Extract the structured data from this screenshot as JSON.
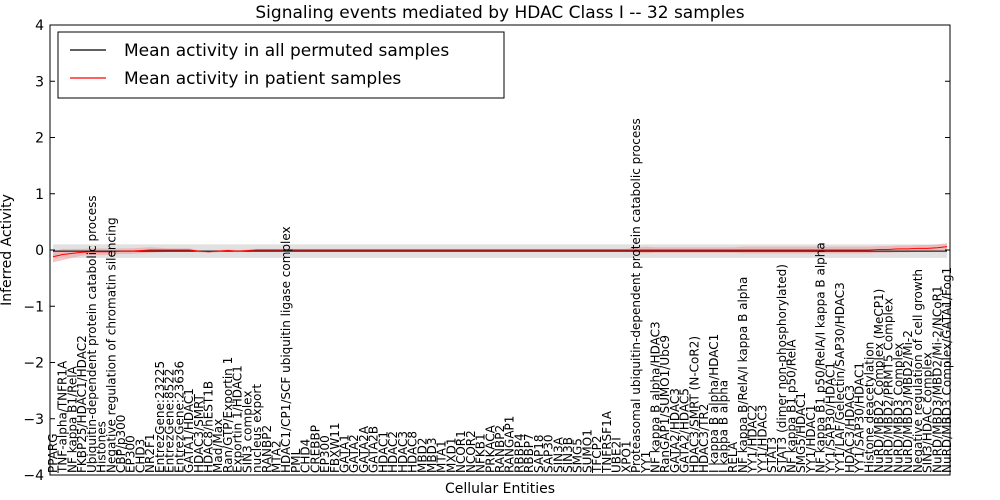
{
  "chart_data": {
    "type": "line",
    "title": "Signaling events mediated by HDAC Class I -- 32 samples",
    "xlabel": "Cellular Entities",
    "ylabel": "Inferred Activity",
    "ylim": [
      -4,
      4
    ],
    "yticks": [
      -4,
      -3,
      -2,
      -1,
      0,
      1,
      2,
      3,
      4
    ],
    "ytick_labels": [
      "−4",
      "−3",
      "−2",
      "−1",
      "0",
      "1",
      "2",
      "3",
      "4"
    ],
    "grid": false,
    "legend_position": "top-left",
    "categories": [
      "PPARG",
      "TNF-alpha/TNFR1A",
      "NF kappa B1/RelA",
      "FKBP25/HDAC1/HDAC2",
      "Ubiquitin-dependent protein catabolic process",
      "Histones",
      "Negative regulation of chromatin silencing",
      "CBP/p300",
      "EP300",
      "CHD3",
      "NR2F1",
      "EntrezGene:23225",
      "EntrezGene:8522",
      "EntrezGene:23636",
      "GATA1/HDAC1",
      "HDAC3/SMRT",
      "HDAC8/hEST1B",
      "Mad/Max",
      "Ran/GTP/Exportin 1",
      "Exportin 1/HDAC1",
      "SIN3 complex",
      "nucleus export",
      "RANBP2",
      "MTA2",
      "HDAC1/CP1/SCF ubiquitin ligase complex",
      "PML",
      "CHD4",
      "CREBBP",
      "EP300",
      "FBXW11",
      "GATA1",
      "GATA2",
      "GATA2A",
      "GATA2B",
      "HDAC1",
      "HDAC2",
      "HDAC3",
      "HDAC8",
      "MBD2",
      "MBD3",
      "MTA1",
      "MXD1",
      "NCOR1",
      "NCOR2",
      "NFKB1",
      "PRKACA",
      "RANBP2",
      "RANGAP1",
      "RBBP4",
      "RBBP7",
      "SAP18",
      "SAP30",
      "SIN3A",
      "SIN3B",
      "SMG5",
      "SUMO1",
      "TFCP2",
      "TNFRSF1A",
      "UBE2I",
      "XPO1",
      "Proteasomal ubiquitin-dependent protein catabolic process",
      "YY1",
      "NF kappa B alpha/HDAC3",
      "RanGAP1/SUMO1/Ubc9",
      "GATA2/HDAC3",
      "GATA2/HDAC5",
      "HDAC3/SMRT (N-CoR2)",
      "HDAC3/TR2",
      "I kappa B alpha/HDAC1",
      "I kappa B alpha",
      "RELA",
      "NF kappa B/RelA/I kappa B alpha",
      "YY1/HDAC2",
      "YY1/HDAC3",
      "STAT3",
      "STAT3 (dimer non-phosphorylated)",
      "NF kappa B1 p50/RelA",
      "SMG5/HDAC1",
      "YY1/HDAC1",
      "NF kappa B1 p50/RelA/I kappa B alpha",
      "YY1/SAP30/HDAC1",
      "YY1/LAF/Gelectin/SAP30/HDAC3",
      "HDAC3/HDAC3",
      "YY1/SAP30/HDAC1",
      "Histone deacetylation",
      "NuRD/MBD2 Complex (MeCP1)",
      "NuRD/MBD2/PRMT5 Complex",
      "NuRD/MBD3 Complex",
      "NuRD/MBD3/MBD2/Mi-2",
      "Negative regulation of cell growth",
      "SIN3/HDAC complex",
      "NuRD/MBD3/MBD2/Mi-2/NCoR1",
      "NuRD/MBD3 Complex/GATA1/Fog1"
    ],
    "series": [
      {
        "name": "Mean activity in all permuted samples",
        "color": "#000000",
        "values": [
          -0.02,
          -0.02,
          -0.02,
          -0.02,
          -0.02,
          -0.02,
          -0.02,
          -0.02,
          -0.02,
          -0.02,
          -0.02,
          -0.02,
          -0.02,
          -0.02,
          -0.02,
          -0.02,
          -0.02,
          -0.02,
          -0.02,
          -0.02,
          -0.02,
          -0.02,
          -0.02,
          -0.02,
          -0.02,
          -0.02,
          -0.02,
          -0.02,
          -0.02,
          -0.02,
          -0.02,
          -0.02,
          -0.02,
          -0.02,
          -0.02,
          -0.02,
          -0.02,
          -0.02,
          -0.02,
          -0.02,
          -0.02,
          -0.02,
          -0.02,
          -0.02,
          -0.02,
          -0.02,
          -0.02,
          -0.02,
          -0.02,
          -0.02,
          -0.02,
          -0.02,
          -0.02,
          -0.02,
          -0.02,
          -0.02,
          -0.02,
          -0.02,
          -0.02,
          -0.02,
          -0.02,
          -0.02,
          -0.02,
          -0.02,
          -0.02,
          -0.02,
          -0.02,
          -0.02,
          -0.02,
          -0.02,
          -0.02,
          -0.02,
          -0.02,
          -0.02,
          -0.02,
          -0.02,
          -0.02,
          -0.02,
          -0.02,
          -0.02,
          -0.02,
          -0.02,
          -0.02,
          -0.02,
          -0.02,
          -0.02,
          -0.02,
          -0.02,
          -0.02,
          -0.02,
          -0.02,
          -0.02,
          -0.02
        ],
        "band": [
          0.12,
          0.12,
          0.12,
          0.12,
          0.12,
          0.12,
          0.12,
          0.12,
          0.12,
          0.12,
          0.12,
          0.12,
          0.12,
          0.12,
          0.12,
          0.12,
          0.12,
          0.12,
          0.12,
          0.12,
          0.12,
          0.12,
          0.12,
          0.12,
          0.12,
          0.12,
          0.12,
          0.12,
          0.12,
          0.12,
          0.12,
          0.12,
          0.12,
          0.12,
          0.12,
          0.12,
          0.12,
          0.12,
          0.12,
          0.12,
          0.12,
          0.12,
          0.12,
          0.12,
          0.12,
          0.12,
          0.12,
          0.12,
          0.12,
          0.12,
          0.12,
          0.12,
          0.12,
          0.12,
          0.12,
          0.12,
          0.12,
          0.12,
          0.12,
          0.12,
          0.12,
          0.12,
          0.12,
          0.12,
          0.12,
          0.12,
          0.12,
          0.12,
          0.12,
          0.12,
          0.12,
          0.12,
          0.12,
          0.12,
          0.12,
          0.12,
          0.12,
          0.12,
          0.12,
          0.12,
          0.12,
          0.12,
          0.12,
          0.12,
          0.12,
          0.12,
          0.12,
          0.12,
          0.12,
          0.12,
          0.12,
          0.12,
          0.12
        ],
        "band_color": "#c8c8c8"
      },
      {
        "name": "Mean activity in patient samples",
        "color": "#ff0000",
        "values": [
          -0.12,
          -0.08,
          -0.06,
          -0.04,
          -0.03,
          -0.03,
          -0.03,
          -0.02,
          -0.02,
          -0.01,
          0.0,
          0.0,
          0.0,
          0.0,
          0.0,
          -0.02,
          -0.03,
          -0.02,
          -0.01,
          -0.02,
          -0.01,
          0.0,
          0.0,
          0.0,
          0.0,
          0.0,
          0.0,
          0.0,
          0.0,
          0.0,
          0.0,
          0.0,
          0.0,
          0.0,
          0.0,
          0.0,
          0.0,
          0.0,
          0.0,
          0.0,
          0.0,
          0.0,
          0.0,
          0.0,
          0.0,
          0.0,
          0.0,
          0.0,
          0.0,
          0.0,
          0.0,
          0.0,
          0.0,
          0.0,
          0.0,
          0.0,
          0.0,
          0.0,
          0.0,
          0.0,
          0.0,
          0.0,
          0.0,
          0.0,
          0.0,
          0.0,
          0.0,
          0.0,
          0.0,
          0.0,
          0.0,
          0.0,
          0.0,
          0.0,
          0.0,
          0.0,
          0.0,
          0.0,
          0.0,
          0.0,
          0.0,
          0.0,
          0.0,
          0.0,
          0.0,
          0.01,
          0.01,
          0.02,
          0.02,
          0.03,
          0.03,
          0.04,
          0.06
        ],
        "band": [
          0.1,
          0.1,
          0.08,
          0.06,
          0.06,
          0.06,
          0.05,
          0.05,
          0.05,
          0.05,
          0.05,
          0.04,
          0.03,
          0.03,
          0.03,
          0.02,
          0.02,
          0.02,
          0.02,
          0.02,
          0.02,
          0.02,
          0.02,
          0.02,
          0.02,
          0.02,
          0.02,
          0.02,
          0.02,
          0.02,
          0.02,
          0.02,
          0.02,
          0.02,
          0.02,
          0.02,
          0.02,
          0.02,
          0.02,
          0.02,
          0.02,
          0.02,
          0.02,
          0.02,
          0.02,
          0.02,
          0.02,
          0.02,
          0.02,
          0.02,
          0.02,
          0.02,
          0.02,
          0.02,
          0.02,
          0.02,
          0.02,
          0.02,
          0.02,
          0.02,
          0.05,
          0.06,
          0.05,
          0.05,
          0.05,
          0.05,
          0.05,
          0.05,
          0.05,
          0.05,
          0.05,
          0.06,
          0.06,
          0.06,
          0.06,
          0.06,
          0.06,
          0.06,
          0.06,
          0.06,
          0.06,
          0.06,
          0.06,
          0.06,
          0.06,
          0.06,
          0.06,
          0.06,
          0.06,
          0.06,
          0.06,
          0.06,
          0.06
        ],
        "band_color": "#f0a0a0"
      }
    ]
  }
}
